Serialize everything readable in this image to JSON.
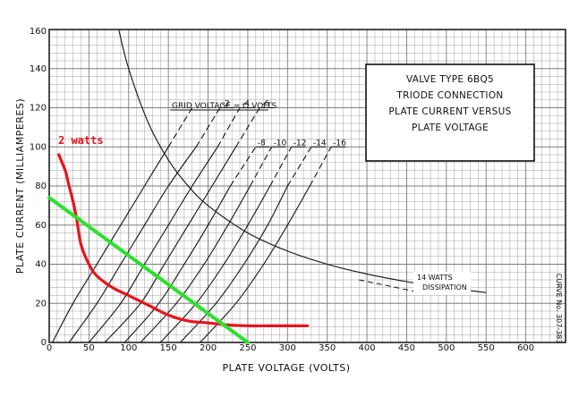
{
  "chart_data": {
    "type": "line",
    "title_box": {
      "lines": [
        "VALVE TYPE 6BQ5",
        "TRIODE CONNECTION",
        "PLATE CURRENT VERSUS",
        "PLATE VOLTAGE"
      ]
    },
    "xlabel": "PLATE VOLTAGE (VOLTS)",
    "ylabel": "PLATE CURRENT (MILLIAMPERES)",
    "xlim": [
      0,
      650
    ],
    "ylim": [
      0,
      160
    ],
    "x_ticks": [
      "0",
      "50",
      "100",
      "150",
      "200",
      "250",
      "300",
      "350",
      "400",
      "450",
      "500",
      "550",
      "600"
    ],
    "y_ticks": [
      "0",
      "20",
      "40",
      "60",
      "80",
      "100",
      "120",
      "140",
      "160"
    ],
    "grid": true,
    "curve_no": "CURVE No. 307-383",
    "grid_curves": [
      {
        "label": "GRID VOLTAGE = O VOLTS",
        "x": [
          4,
          30,
          60,
          90,
          120,
          150,
          180
        ],
        "y": [
          0,
          20,
          40,
          60,
          80,
          100,
          120
        ]
      },
      {
        "label": "-2",
        "x": [
          25,
          60,
          90,
          120,
          150,
          185,
          215
        ],
        "y": [
          0,
          20,
          40,
          60,
          80,
          100,
          120
        ]
      },
      {
        "label": "-4",
        "x": [
          50,
          90,
          120,
          150,
          180,
          212,
          240
        ],
        "y": [
          0,
          20,
          40,
          60,
          80,
          100,
          120
        ]
      },
      {
        "label": "-6",
        "x": [
          70,
          115,
          145,
          175,
          205,
          235,
          265
        ],
        "y": [
          0,
          20,
          40,
          60,
          80,
          100,
          120
        ]
      },
      {
        "label": "-8",
        "x": [
          95,
          138,
          170,
          200,
          228,
          260
        ],
        "y": [
          0,
          20,
          40,
          60,
          80,
          100
        ]
      },
      {
        "label": "-10",
        "x": [
          115,
          160,
          195,
          225,
          253,
          280
        ],
        "y": [
          0,
          20,
          40,
          60,
          80,
          100
        ]
      },
      {
        "label": "-12",
        "x": [
          140,
          185,
          220,
          250,
          278,
          305
        ],
        "y": [
          0,
          20,
          40,
          60,
          80,
          100
        ]
      },
      {
        "label": "-14",
        "x": [
          165,
          210,
          245,
          275,
          300,
          330
        ],
        "y": [
          0,
          20,
          40,
          60,
          80,
          100
        ]
      },
      {
        "label": "-16",
        "x": [
          190,
          235,
          270,
          300,
          328,
          355
        ],
        "y": [
          0,
          20,
          40,
          60,
          80,
          100
        ]
      }
    ],
    "dissipation_curve": {
      "label": "14 WATTS DISSIPATION",
      "x": [
        87.5,
        100,
        125,
        150,
        175,
        200,
        250,
        300,
        350,
        400,
        450,
        500,
        550
      ],
      "y": [
        160,
        140,
        112,
        93.3,
        80,
        70,
        56,
        46.7,
        40,
        35,
        31.1,
        28,
        25.5
      ]
    },
    "power_curve_2w": {
      "label": "2 watts",
      "color": "#e8141c",
      "x": [
        12,
        20,
        25,
        30,
        35,
        40,
        50,
        60,
        80,
        100,
        125,
        150,
        175,
        200,
        225,
        250,
        275,
        300,
        325
      ],
      "y": [
        96,
        88,
        80,
        72,
        62,
        50,
        40,
        34,
        28,
        24,
        19,
        14,
        11,
        10,
        9,
        8.5,
        8.5,
        8.5,
        8.5
      ]
    },
    "load_line": {
      "color": "#2ee02e",
      "x": [
        0,
        250
      ],
      "y": [
        74,
        0
      ]
    },
    "colors": {
      "grid": "#7d7d7d",
      "ink": "#111111"
    }
  }
}
